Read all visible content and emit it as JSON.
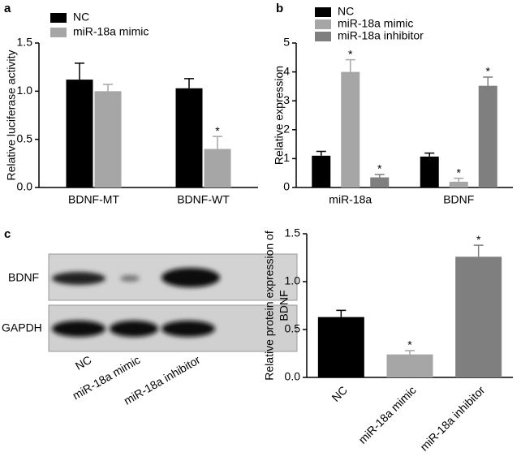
{
  "chart_data": [
    {
      "type": "bar",
      "panel": "a",
      "ylabel": [
        "Relative luciferase activity"
      ],
      "categories": [
        "BDNF-MT",
        "BDNF-WT"
      ],
      "series": [
        {
          "name": "NC",
          "color": "#000000",
          "values": [
            1.12,
            1.03
          ],
          "errors": [
            0.17,
            0.1
          ],
          "annotations": [
            null,
            null
          ]
        },
        {
          "name": "miR-18a mimic",
          "color": "#a6a6a6",
          "values": [
            1.0,
            0.4
          ],
          "errors": [
            0.07,
            0.13
          ],
          "annotations": [
            null,
            "*"
          ]
        }
      ],
      "ylim": [
        0,
        1.5
      ],
      "yticks": [
        {
          "value": 0,
          "label": "0.0"
        },
        {
          "value": 0.5,
          "label": "0.5"
        },
        {
          "value": 1,
          "label": "1.0"
        },
        {
          "value": 1.5,
          "label": "1.5"
        }
      ],
      "legend": "upper left"
    },
    {
      "type": "bar",
      "panel": "b",
      "ylabel": [
        "Relative expression"
      ],
      "categories": [
        "miR-18a",
        "BDNF"
      ],
      "series": [
        {
          "name": "NC",
          "color": "#000000",
          "values": [
            1.1,
            1.07
          ],
          "errors": [
            0.15,
            0.12
          ],
          "annotations": [
            null,
            null
          ]
        },
        {
          "name": "miR-18a mimic",
          "color": "#a6a6a6",
          "values": [
            4.0,
            0.2
          ],
          "errors": [
            0.42,
            0.12
          ],
          "annotations": [
            "*",
            "*"
          ]
        },
        {
          "name": "miR-18a inhibitor",
          "color": "#7f7f7f",
          "values": [
            0.35,
            3.52
          ],
          "errors": [
            0.1,
            0.3
          ],
          "annotations": [
            "*",
            "*"
          ]
        }
      ],
      "ylim": [
        0,
        5
      ],
      "yticks": [
        0,
        1,
        2,
        3,
        4,
        5
      ],
      "legend": "upper left"
    },
    {
      "type": "bar",
      "ylabel": [
        "Relative protein expression of",
        "BDNF"
      ],
      "categories": [
        "NC",
        "miR-18a mimic",
        "miR-18a inhibitor"
      ],
      "values": [
        0.63,
        0.24,
        1.26
      ],
      "errors": [
        0.07,
        0.04,
        0.12
      ],
      "annotations": [
        null,
        "*",
        "*"
      ],
      "colors": [
        "#000000",
        "#a6a6a6",
        "#7f7f7f"
      ],
      "ylim": [
        0,
        1.5
      ],
      "yticks": [
        {
          "value": 0,
          "label": "0.0"
        },
        {
          "value": 0.5,
          "label": "0.5"
        },
        {
          "value": 1,
          "label": "1.0"
        },
        {
          "value": 1.5,
          "label": "1.5"
        }
      ],
      "xtick_rotation": 45
    }
  ],
  "blot": {
    "panel": "c",
    "rows": [
      "BDNF",
      "GAPDH"
    ],
    "lanes": [
      "NC",
      "miR-18a mimic",
      "miR-18a inhibitor"
    ]
  }
}
